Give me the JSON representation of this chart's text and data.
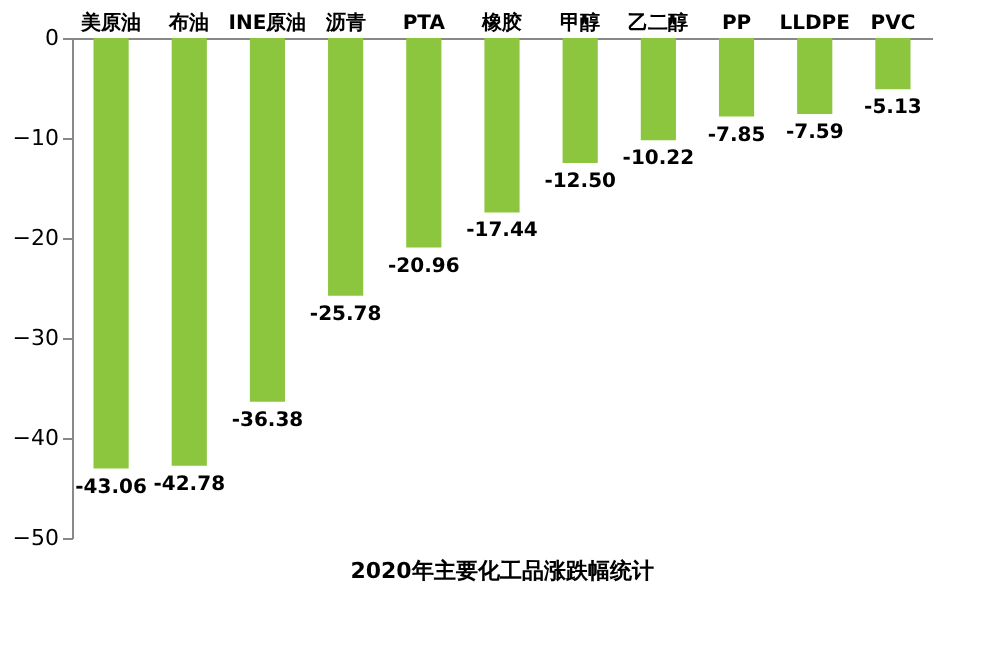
{
  "chart_data": {
    "type": "bar",
    "title": "2020年主要化工品涨跌幅统计",
    "categories": [
      "美原油",
      "布油",
      "INE原油",
      "沥青",
      "PTA",
      "橡胶",
      "甲醇",
      "乙二醇",
      "PP",
      "LLDPE",
      "PVC"
    ],
    "values": [
      -43.06,
      -42.78,
      -36.38,
      -25.78,
      -20.96,
      -17.44,
      -12.5,
      -10.22,
      -7.85,
      -7.59,
      -5.13
    ],
    "value_labels": [
      "-43.06",
      "-42.78",
      "-36.38",
      "-25.78",
      "-20.96",
      "-17.44",
      "-12.50",
      "-10.22",
      "-7.85",
      "-7.59",
      "-5.13"
    ],
    "color": "#8cc63e",
    "ylim": [
      -50,
      0
    ],
    "yticks": [
      -50,
      -40,
      -30,
      -20,
      -10,
      0
    ],
    "grid": false
  }
}
